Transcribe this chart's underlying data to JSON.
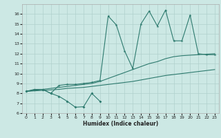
{
  "xlabel": "Humidex (Indice chaleur)",
  "bg_color": "#cce8e4",
  "line_color": "#2d7a6e",
  "grid_color": "#b0d0cc",
  "xlim": [
    -0.5,
    23.5
  ],
  "ylim": [
    6,
    17
  ],
  "xticks": [
    0,
    1,
    2,
    3,
    4,
    5,
    6,
    7,
    8,
    9,
    10,
    11,
    12,
    13,
    14,
    15,
    16,
    17,
    18,
    19,
    20,
    21,
    22,
    23
  ],
  "yticks": [
    6,
    7,
    8,
    9,
    10,
    11,
    12,
    13,
    14,
    15,
    16
  ],
  "jagged_x": [
    0,
    1,
    2,
    3,
    4,
    5,
    6,
    7,
    8,
    9,
    10,
    11,
    12,
    13,
    14,
    15,
    16,
    17,
    18,
    19,
    20,
    21,
    22,
    23
  ],
  "jagged_y": [
    8.2,
    8.4,
    8.4,
    8.0,
    8.8,
    8.9,
    8.9,
    9.0,
    9.1,
    9.3,
    15.8,
    14.9,
    12.3,
    10.5,
    15.0,
    16.3,
    14.8,
    16.4,
    13.3,
    13.3,
    15.9,
    12.0,
    11.9,
    11.9
  ],
  "smooth_upper_x": [
    0,
    1,
    2,
    3,
    4,
    5,
    6,
    7,
    8,
    9,
    10,
    11,
    12,
    13,
    14,
    15,
    16,
    17,
    18,
    19,
    20,
    21,
    22,
    23
  ],
  "smooth_upper_y": [
    8.2,
    8.3,
    8.4,
    8.5,
    8.6,
    8.7,
    8.8,
    8.9,
    9.0,
    9.2,
    9.5,
    9.8,
    10.1,
    10.4,
    10.7,
    11.0,
    11.2,
    11.5,
    11.7,
    11.8,
    11.85,
    11.9,
    11.95,
    12.0
  ],
  "smooth_lower_x": [
    0,
    1,
    2,
    3,
    4,
    5,
    6,
    7,
    8,
    9,
    10,
    11,
    12,
    13,
    14,
    15,
    16,
    17,
    18,
    19,
    20,
    21,
    22,
    23
  ],
  "smooth_lower_y": [
    8.2,
    8.25,
    8.3,
    8.35,
    8.4,
    8.5,
    8.55,
    8.6,
    8.7,
    8.8,
    8.9,
    9.0,
    9.1,
    9.2,
    9.35,
    9.5,
    9.65,
    9.8,
    9.9,
    10.0,
    10.1,
    10.2,
    10.3,
    10.4
  ],
  "dip_x": [
    0,
    1,
    2,
    3,
    4,
    5,
    6,
    7,
    8,
    9
  ],
  "dip_y": [
    8.2,
    8.35,
    8.4,
    8.0,
    7.7,
    7.2,
    6.6,
    6.65,
    8.0,
    7.2
  ]
}
